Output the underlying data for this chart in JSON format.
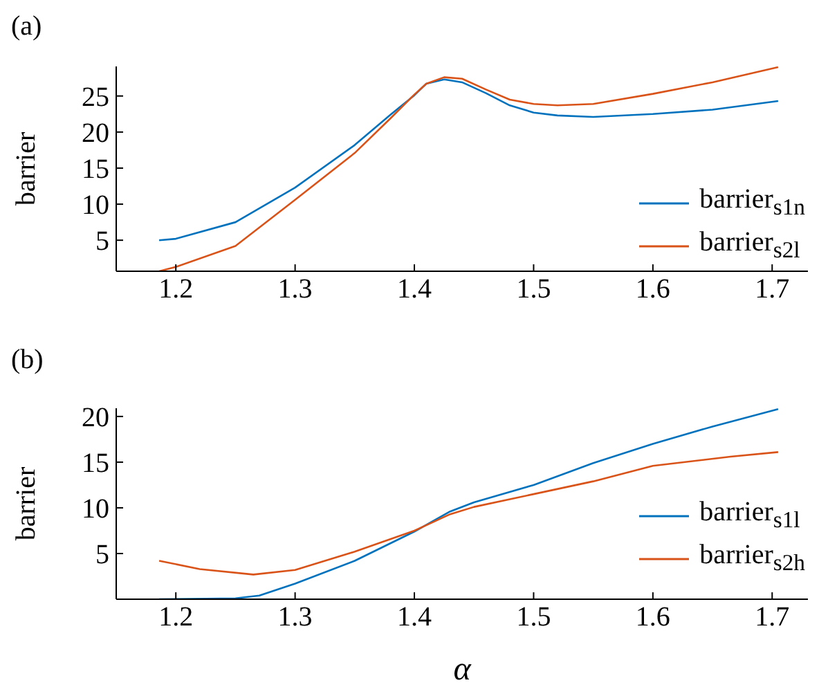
{
  "chart_data": [
    {
      "type": "line",
      "title": "(a)",
      "ylabel": "barrier",
      "xlim": [
        1.15,
        1.73
      ],
      "xticks": [
        1.2,
        1.3,
        1.4,
        1.5,
        1.6,
        1.7
      ],
      "ylim": [
        0.7,
        29.1
      ],
      "yticks": [
        5,
        10,
        15,
        20,
        25
      ],
      "legend": "bottom right",
      "marker": "none",
      "line_style": "solid",
      "series": [
        {
          "name": "barrier$_{s1n}$",
          "color": "#0072bd",
          "x": [
            1.186,
            1.2,
            1.25,
            1.3,
            1.35,
            1.38,
            1.4,
            1.41,
            1.425,
            1.44,
            1.46,
            1.48,
            1.5,
            1.52,
            1.55,
            1.6,
            1.65,
            1.705
          ],
          "values": [
            5.0,
            5.2,
            7.5,
            12.3,
            18.2,
            22.4,
            25.1,
            26.7,
            27.3,
            26.9,
            25.4,
            23.7,
            22.7,
            22.3,
            22.1,
            22.5,
            23.1,
            24.3
          ]
        },
        {
          "name": "barrier$_{s2l}$",
          "color": "#d95319",
          "x": [
            1.186,
            1.2,
            1.25,
            1.3,
            1.35,
            1.38,
            1.4,
            1.41,
            1.425,
            1.44,
            1.46,
            1.48,
            1.5,
            1.52,
            1.55,
            1.6,
            1.65,
            1.705
          ],
          "values": [
            0.7,
            1.3,
            4.2,
            10.6,
            17.1,
            21.9,
            25.2,
            26.7,
            27.6,
            27.4,
            25.9,
            24.5,
            23.9,
            23.7,
            23.9,
            25.3,
            26.9,
            29.0
          ]
        }
      ]
    },
    {
      "type": "line",
      "title": "(b)",
      "xlabel": "α",
      "ylabel": "barrier",
      "xlim": [
        1.15,
        1.73
      ],
      "xticks": [
        1.2,
        1.3,
        1.4,
        1.5,
        1.6,
        1.7
      ],
      "ylim": [
        0,
        20.9
      ],
      "yticks": [
        5,
        10,
        15,
        20
      ],
      "legend": "bottom right",
      "marker": "none",
      "line_style": "solid",
      "series": [
        {
          "name": "barrier$_{s1l}$",
          "color": "#0072bd",
          "x": [
            1.186,
            1.25,
            1.27,
            1.3,
            1.35,
            1.4,
            1.43,
            1.45,
            1.5,
            1.55,
            1.6,
            1.65,
            1.705
          ],
          "values": [
            0,
            0.1,
            0.4,
            1.7,
            4.2,
            7.4,
            9.6,
            10.6,
            12.5,
            14.9,
            17.0,
            18.9,
            20.8
          ]
        },
        {
          "name": "barrier$_{s2h}$",
          "color": "#d95319",
          "x": [
            1.186,
            1.22,
            1.265,
            1.3,
            1.35,
            1.4,
            1.43,
            1.45,
            1.5,
            1.55,
            1.6,
            1.665,
            1.705
          ],
          "values": [
            4.2,
            3.3,
            2.7,
            3.2,
            5.2,
            7.5,
            9.3,
            10.1,
            11.5,
            12.9,
            14.6,
            15.6,
            16.1
          ]
        }
      ]
    }
  ]
}
